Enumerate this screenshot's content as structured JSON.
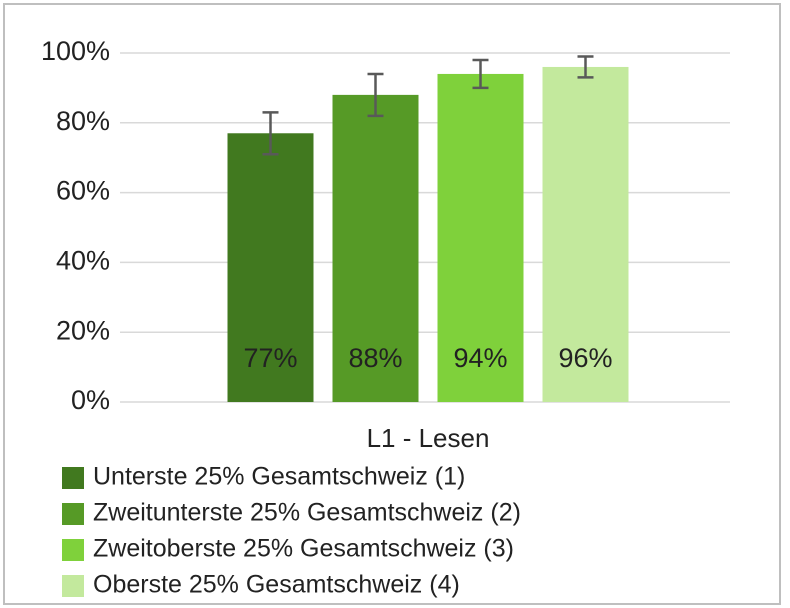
{
  "chart_data": {
    "type": "bar",
    "categories": [
      "L1 - Lesen"
    ],
    "series": [
      {
        "name": "Unterste 25% Gesamtschweiz (1)",
        "color": "#41791f",
        "values": [
          77
        ],
        "value_labels": [
          "77%"
        ],
        "errors": [
          6
        ]
      },
      {
        "name": "Zweitunterste 25% Gesamtschweiz (2)",
        "color": "#569a26",
        "values": [
          88
        ],
        "value_labels": [
          "88%"
        ],
        "errors": [
          6
        ]
      },
      {
        "name": "Zweitoberste 25% Gesamtschweiz (3)",
        "color": "#7fd13b",
        "values": [
          94
        ],
        "value_labels": [
          "94%"
        ],
        "errors": [
          4
        ]
      },
      {
        "name": "Oberste 25% Gesamtschweiz (4)",
        "color": "#c3e99d",
        "values": [
          96
        ],
        "value_labels": [
          "96%"
        ],
        "errors": [
          3
        ]
      }
    ],
    "ylim": [
      0,
      100
    ],
    "yticks": [
      {
        "value": 0,
        "label": "0%"
      },
      {
        "value": 20,
        "label": "20%"
      },
      {
        "value": 40,
        "label": "40%"
      },
      {
        "value": 60,
        "label": "60%"
      },
      {
        "value": 80,
        "label": "80%"
      },
      {
        "value": 100,
        "label": "100%"
      }
    ],
    "grid": true
  }
}
